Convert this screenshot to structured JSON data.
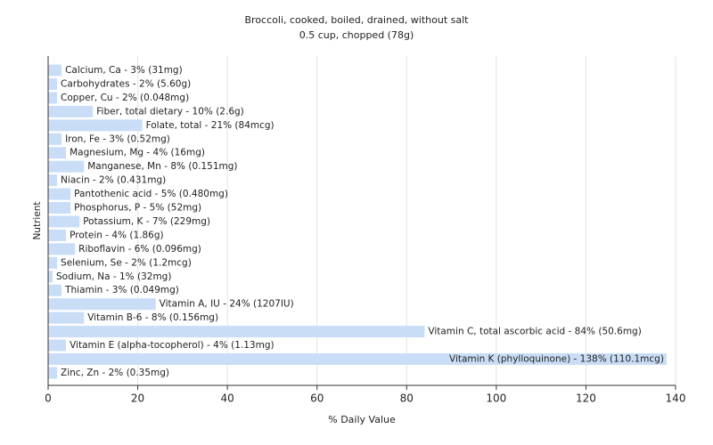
{
  "chart_data": {
    "type": "bar",
    "orientation": "horizontal",
    "title": "Broccoli, cooked, boiled, drained, without salt",
    "subtitle": "0.5 cup, chopped (78g)",
    "x_label": "% Daily Value",
    "y_label": "Nutrient",
    "values": [
      3,
      2,
      2,
      10,
      21,
      3,
      4,
      8,
      2,
      5,
      5,
      7,
      4,
      6,
      2,
      1,
      3,
      24,
      8,
      84,
      4,
      138,
      2
    ],
    "value_labels": [
      "Calcium, Ca - 3% (31mg)",
      "Carbohydrates - 2% (5.60g)",
      "Copper, Cu - 2% (0.048mg)",
      "Fiber, total dietary - 10% (2.6g)",
      "Folate, total - 21% (84mcg)",
      "Iron, Fe - 3% (0.52mg)",
      "Magnesium, Mg - 4% (16mg)",
      "Manganese, Mn - 8% (0.151mg)",
      "Niacin - 2% (0.431mg)",
      "Pantothenic acid - 5% (0.480mg)",
      "Phosphorus, P - 5% (52mg)",
      "Potassium, K - 7% (229mg)",
      "Protein - 4% (1.86g)",
      "Riboflavin - 6% (0.096mg)",
      "Selenium, Se - 2% (1.2mcg)",
      "Sodium, Na - 1% (32mg)",
      "Thiamin - 3% (0.049mg)",
      "Vitamin A, IU - 24% (1207IU)",
      "Vitamin B-6 - 8% (0.156mg)",
      "Vitamin C, total ascorbic acid - 84% (50.6mg)",
      "Vitamin E (alpha-tocopherol) - 4% (1.13mg)",
      "Vitamin K (phylloquinone) - 138% (110.1mcg)",
      "Zinc, Zn - 2% (0.35mg)"
    ],
    "color": "#c9def6",
    "xlim": [
      0,
      140
    ],
    "xticks": [
      0,
      20,
      40,
      60,
      80,
      100,
      120,
      140
    ],
    "grid": true
  }
}
